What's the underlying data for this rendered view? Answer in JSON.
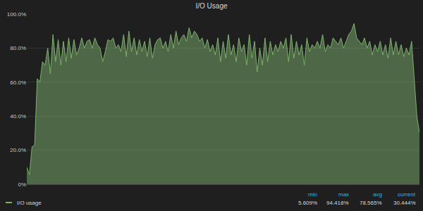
{
  "chart_data": {
    "type": "area",
    "title": "I/O Usage",
    "x": [
      0,
      1,
      2,
      3,
      4,
      5,
      6,
      7,
      8,
      9,
      10,
      11,
      12,
      13,
      14,
      15,
      16,
      17,
      18,
      19,
      20,
      21,
      22,
      23,
      24,
      25,
      26,
      27,
      28,
      29,
      30,
      31,
      32,
      33,
      34,
      35,
      36,
      37,
      38,
      39,
      40,
      41,
      42,
      43,
      44,
      45,
      46,
      47,
      48,
      49,
      50,
      51,
      52,
      53,
      54,
      55,
      56,
      57,
      58,
      59,
      60,
      61,
      62,
      63,
      64,
      65,
      66,
      67,
      68,
      69,
      70,
      71,
      72,
      73,
      74,
      75,
      76,
      77,
      78,
      79,
      80,
      81,
      82,
      83,
      84,
      85,
      86,
      87,
      88,
      89,
      90,
      91,
      92,
      93,
      94,
      95,
      96,
      97,
      98,
      99,
      100,
      101,
      102,
      103,
      104,
      105,
      106,
      107,
      108,
      109,
      110,
      111,
      112,
      113,
      114,
      115,
      116,
      117,
      118,
      119,
      120,
      121,
      122,
      123,
      124,
      125,
      126,
      127,
      128,
      129,
      130,
      131,
      132,
      133,
      134,
      135,
      136,
      137,
      138,
      139,
      140,
      141,
      142,
      143,
      144,
      145,
      146,
      147,
      148,
      149,
      150
    ],
    "series": [
      {
        "name": "I/O usage",
        "color": "#7eb26d",
        "values": [
          10,
          5.609,
          22,
          23,
          62,
          60,
          72,
          70,
          80,
          65,
          88,
          72,
          85,
          70,
          84,
          72,
          86,
          74,
          85,
          76,
          80,
          86,
          80,
          84,
          85,
          80,
          86,
          82,
          80,
          72,
          78,
          85,
          84,
          86,
          80,
          82,
          78,
          88,
          75,
          90,
          78,
          86,
          76,
          85,
          78,
          84,
          75,
          86,
          74,
          82,
          85,
          86,
          80,
          84,
          78,
          88,
          80,
          90,
          82,
          86,
          88,
          84,
          92,
          86,
          90,
          88,
          84,
          86,
          80,
          85,
          78,
          82,
          76,
          86,
          72,
          84,
          74,
          88,
          76,
          82,
          72,
          86,
          78,
          82,
          70,
          88,
          74,
          84,
          66,
          80,
          70,
          86,
          72,
          84,
          76,
          82,
          78,
          84,
          80,
          86,
          72,
          88,
          74,
          84,
          76,
          82,
          70,
          86,
          78,
          82,
          80,
          84,
          80,
          88,
          78,
          82,
          80,
          86,
          84,
          82,
          86,
          80,
          84,
          88,
          90,
          94.418,
          86,
          84,
          82,
          86,
          80,
          84,
          76,
          82,
          78,
          84,
          76,
          82,
          74,
          86,
          76,
          84,
          76,
          82,
          75,
          80,
          76,
          84,
          64,
          40,
          30.444
        ],
        "stats": [
          {
            "name": "min",
            "value": 5.609,
            "label": "5.609%"
          },
          {
            "name": "max",
            "value": 94.418,
            "label": "94.418%"
          },
          {
            "name": "avg",
            "value": 78.565,
            "label": "78.565%"
          },
          {
            "name": "current",
            "value": 30.444,
            "label": "30.444%"
          }
        ]
      }
    ],
    "xlim": [
      0,
      150
    ],
    "ylim": [
      0,
      100
    ],
    "yticks": [
      {
        "value": 0,
        "label": "0%"
      },
      {
        "value": 20,
        "label": "20.0%"
      },
      {
        "value": 40,
        "label": "40.0%"
      },
      {
        "value": 60,
        "label": "60.0%"
      },
      {
        "value": 80,
        "label": "80.0%"
      },
      {
        "value": 100,
        "label": "100.0%"
      }
    ],
    "grid": true,
    "legend": "bottom left",
    "tick_labels": "y"
  }
}
